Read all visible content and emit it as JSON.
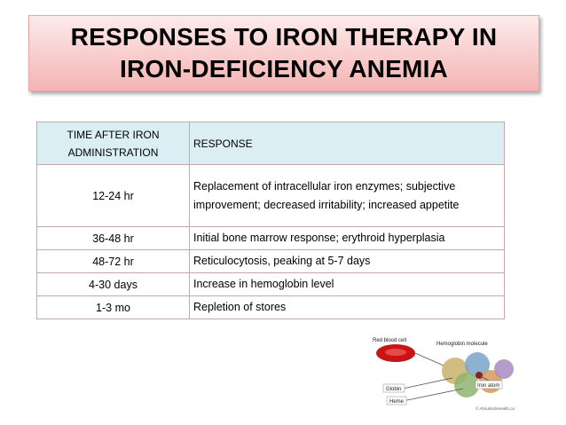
{
  "title": {
    "line1": "RESPONSES TO IRON THERAPY IN",
    "line2": "IRON-DEFICIENCY ANEMIA"
  },
  "table": {
    "header": {
      "time_line1": "TIME AFTER IRON",
      "time_line2": "ADMINISTRATION",
      "response": "RESPONSE"
    },
    "rows": [
      {
        "time": "12-24 hr",
        "response": "Replacement of intracellular iron enzymes; subjective improvement; decreased irritability; increased appetite"
      },
      {
        "time": "36-48 hr",
        "response": "Initial bone marrow response; erythroid hyperplasia"
      },
      {
        "time": "48-72 hr",
        "response": "Reticulocytosis, peaking at 5-7 days"
      },
      {
        "time": "4-30 days",
        "response": "Increase in hemoglobin level"
      },
      {
        "time": "1-3 mo",
        "response": "Repletion of stores"
      }
    ]
  },
  "figure": {
    "label_rbc": "Red blood cell",
    "label_hgb": "Hemoglobin molecule",
    "label_iron": "Iron atom",
    "label_globin": "Globin",
    "label_heme": "Heme",
    "watermark": "© AboutKidsHealth.ca"
  }
}
